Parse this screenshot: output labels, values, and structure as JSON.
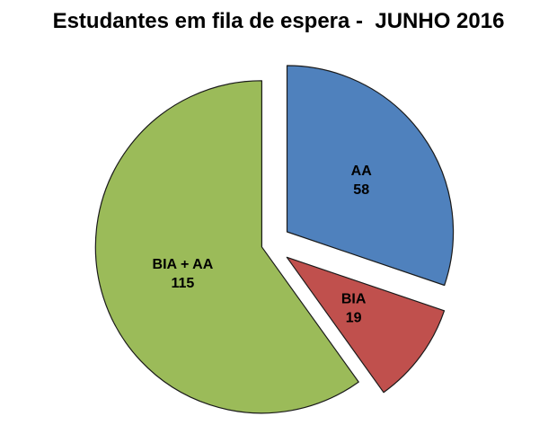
{
  "chart_data": {
    "type": "pie",
    "title": "Estudantes em fila de espera -  JUNHO 2016",
    "slices": [
      {
        "label": "AA",
        "value": 58,
        "color": "#4F81BD"
      },
      {
        "label": "BIA",
        "value": 19,
        "color": "#C0504D"
      },
      {
        "label": "BIA + AA",
        "value": 115,
        "color": "#9BBB59"
      }
    ],
    "start_angle_deg": 0,
    "direction": "clockwise",
    "exploded": true,
    "legend_position": "none",
    "data_labels": "category_and_value",
    "background": "#FFFFFF",
    "text_color": "#000000"
  }
}
